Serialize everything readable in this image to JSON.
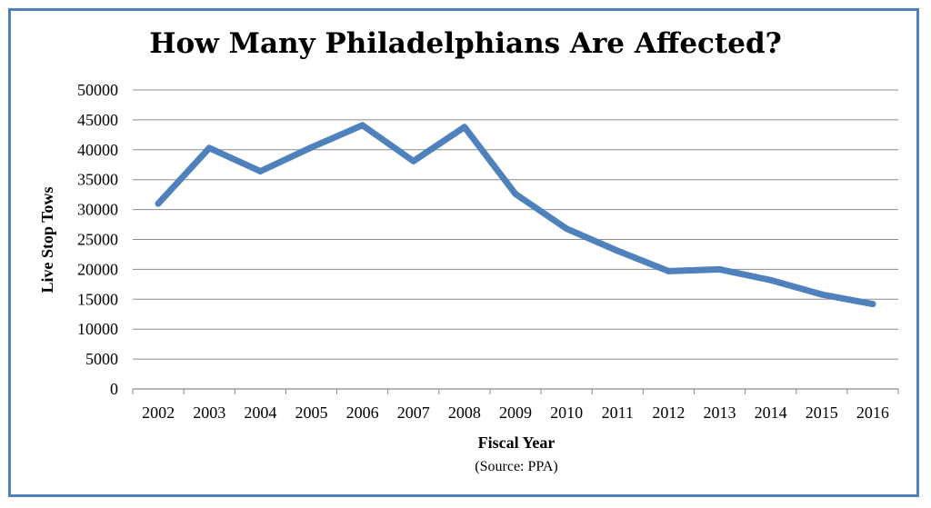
{
  "title": "How Many Philadelphians Are Affected?",
  "chart_data": {
    "type": "line",
    "title": "How Many Philadelphians Are Affected?",
    "xlabel": "Fiscal Year",
    "ylabel": "Live Stop Tows",
    "note": "(Source: PPA)",
    "categories": [
      "2002",
      "2003",
      "2004",
      "2005",
      "2006",
      "2007",
      "2008",
      "2009",
      "2010",
      "2011",
      "2012",
      "2013",
      "2014",
      "2015",
      "2016"
    ],
    "series": [
      {
        "values": [
          31000,
          40300,
          36400,
          40400,
          44100,
          38100,
          43800,
          32600,
          26800,
          23100,
          19700,
          20000,
          18200,
          15800,
          14200
        ]
      }
    ],
    "ylim": [
      0,
      50000
    ],
    "yticks": [
      0,
      5000,
      10000,
      15000,
      20000,
      25000,
      30000,
      35000,
      40000,
      45000,
      50000
    ],
    "grid": true,
    "legend": "none",
    "line_color": "#4f81bd"
  }
}
